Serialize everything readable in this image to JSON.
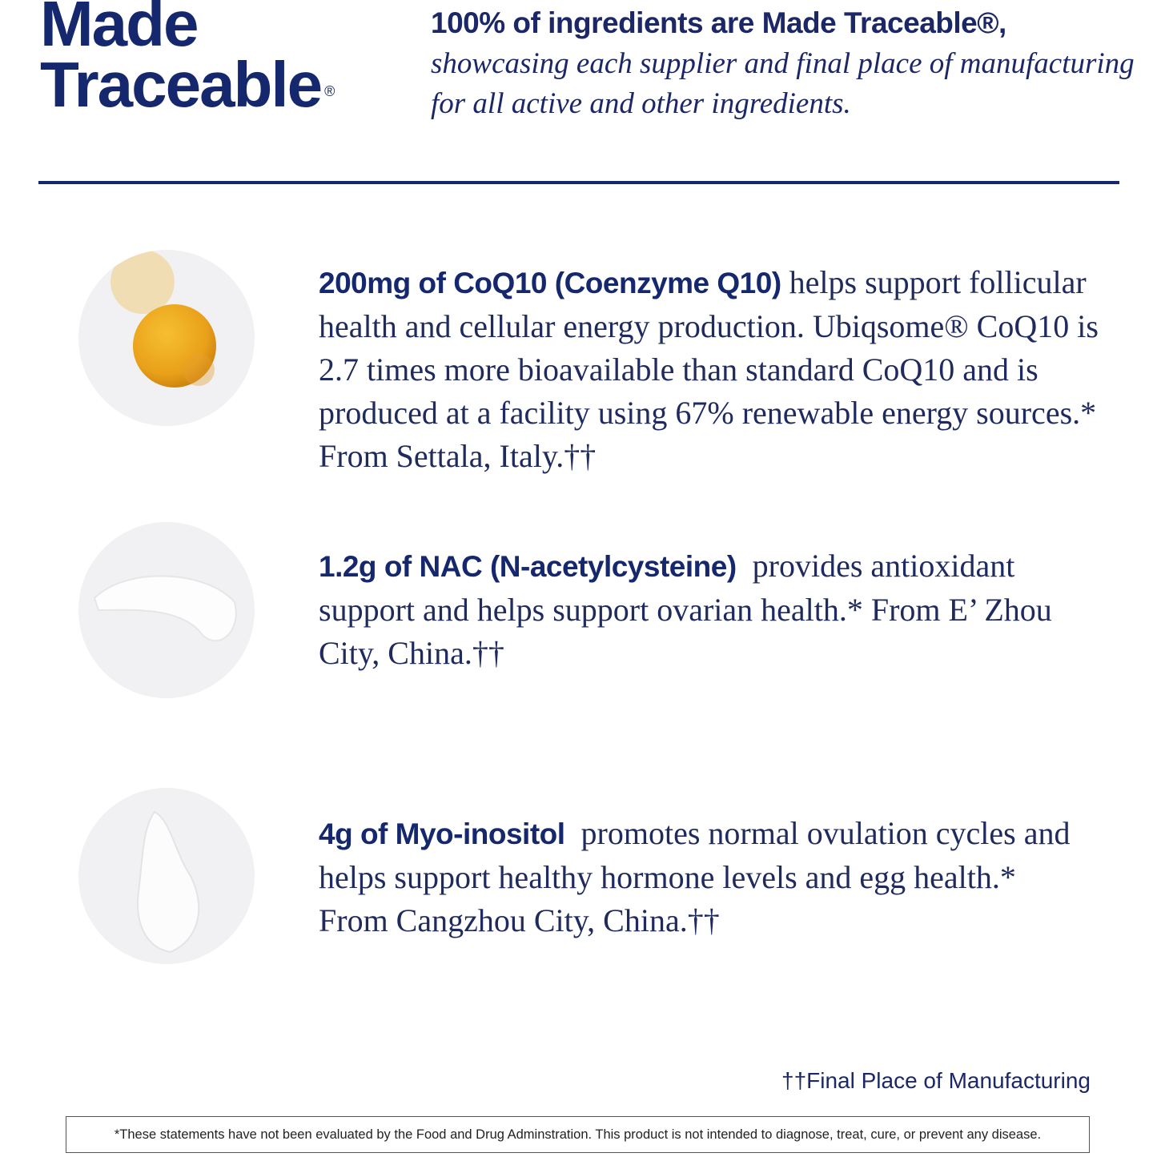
{
  "header": {
    "title_line1": "Made",
    "title_line2": "Traceable",
    "title_mark": "®",
    "intro_lead": "100% of ingredients are Made Traceable®,",
    "intro_rest": "showcasing each supplier and final place of manufacturing for all active and other ingredients."
  },
  "ingredients": [
    {
      "image": "coq10-orange-powder",
      "name": "200mg of CoQ10 (Coenzyme Q10)",
      "description": " helps support follicular health and cellular energy production. Ubiqsome® CoQ10 is 2.7 times more bioavailable than standard CoQ10 and is produced at a facility using 67% renewable energy sources.* From Settala, Italy.††"
    },
    {
      "image": "nac-white-powder-smear",
      "name": "1.2g of NAC (N-acetylcysteine)",
      "description": "  provides antioxidant support and helps support ovarian health.* From E’ Zhou City, China.††"
    },
    {
      "image": "myo-inositol-white-powder-pile",
      "name": "4g of Myo-inositol",
      "description": "  promotes normal ovulation cycles and helps support healthy hormone levels and egg health.* From Cangzhou City, China.††"
    }
  ],
  "footnote": "††Final Place of Manufacturing",
  "disclaimer": "*These statements have not been evaluated by the Food and Drug Adminstration. This product is not intended to diagnose, treat, cure, or prevent any disease.",
  "colors": {
    "navy": "#15286e",
    "powder_orange": "#eaa21c",
    "circle_bg": "#f1f1f3"
  }
}
